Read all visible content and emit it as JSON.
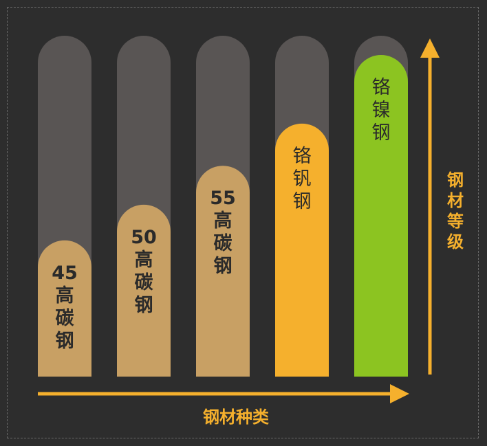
{
  "chart_data": {
    "type": "bar",
    "categories": [
      "45高碳钢",
      "50高碳钢",
      "55高碳钢",
      "铬钒钢",
      "铬镍钢"
    ],
    "label_lines": [
      [
        "45",
        "高",
        "碳",
        "钢"
      ],
      [
        "50",
        "高",
        "碳",
        "钢"
      ],
      [
        "55",
        "高",
        "碳",
        "钢"
      ],
      [
        "铬",
        "钒",
        "钢"
      ],
      [
        "铬",
        "镍",
        "钢"
      ]
    ],
    "values": [
      0.42,
      0.53,
      0.65,
      0.78,
      1.0
    ],
    "ylim": [
      0,
      1
    ],
    "xlabel": "钢材种类",
    "ylabel": "钢材等级",
    "grid": false,
    "legend": "none",
    "colors": {
      "background": "#2d2d2d",
      "track": "#595554",
      "bars": [
        "#c8a064",
        "#c8a064",
        "#c8a064",
        "#f5b02d",
        "#8cc421"
      ],
      "axis": "#f5b02d",
      "axis_title": "#f5b02d"
    }
  }
}
